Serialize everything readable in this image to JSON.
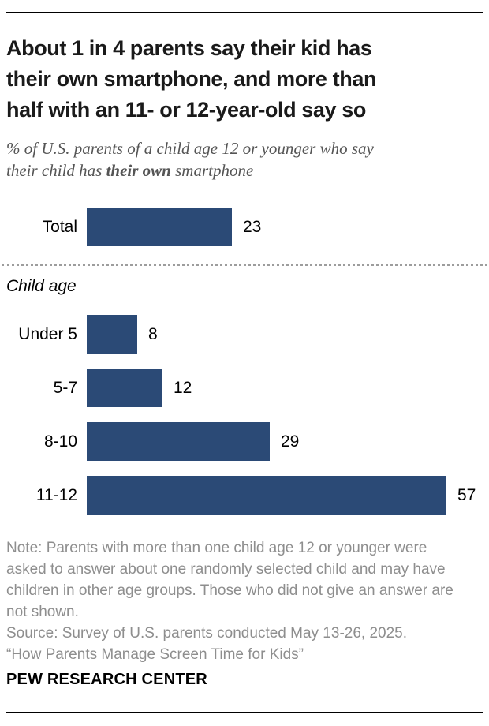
{
  "header": {
    "title": "About 1 in 4 parents say their kid has\ntheir own smartphone, and more than\nhalf with an 11- or 12-year-old say so",
    "subtitle_line1": "% of U.S. parents of a child age 12 or younger who say",
    "subtitle_line2_prefix": "their child has ",
    "subtitle_line2_bold": "their own",
    "subtitle_line2_suffix": " smartphone"
  },
  "chart_data": {
    "type": "bar",
    "orientation": "horizontal",
    "title": "About 1 in 4 parents say their kid has their own smartphone, and more than half with an 11- or 12-year-old say so",
    "subtitle": "% of U.S. parents of a child age 12 or younger who say their child has their own smartphone",
    "categories": [
      "Total",
      "Under 5",
      "5-7",
      "8-10",
      "11-12"
    ],
    "values": [
      23,
      8,
      12,
      29,
      57
    ],
    "group_label": "Child age",
    "bar_color": "#2b4a76",
    "xlim": [
      0,
      62
    ],
    "data_labels": true,
    "grid": false,
    "legend": "none"
  },
  "footer": {
    "note": "Note: Parents with more than one child age 12 or younger were\nasked to answer about one randomly selected child and may have\nchildren in other age groups. Those who did not give an answer are\nnot shown.",
    "source": "Source: Survey of U.S. parents conducted May 13-26, 2025.",
    "report": "“How Parents Manage Screen Time for Kids”",
    "brand": "PEW RESEARCH CENTER"
  },
  "colors": {
    "bar": "#2b4a76",
    "title_text": "#1a1a1a",
    "subtitle_text": "#555555",
    "note_text": "#8e8e8e",
    "divider_dots": "#9d9d9d",
    "rule": "#000000"
  }
}
